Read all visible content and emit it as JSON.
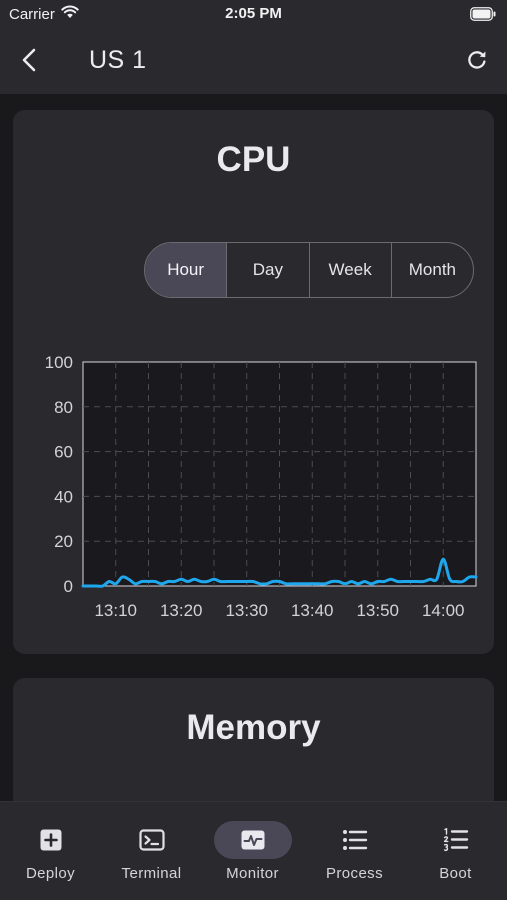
{
  "status_bar": {
    "carrier": "Carrier",
    "time": "2:05 PM",
    "wifi_icon": "wifi-icon",
    "battery_icon": "battery-icon"
  },
  "nav": {
    "title": "US 1",
    "back_icon": "chevron-left-icon",
    "refresh_icon": "refresh-icon"
  },
  "cpu_card": {
    "title": "CPU",
    "ranges": [
      "Hour",
      "Day",
      "Week",
      "Month"
    ],
    "selected_range": "Hour"
  },
  "memory_card": {
    "title": "Memory"
  },
  "tabs": [
    {
      "label": "Deploy",
      "icon": "plus-square-icon",
      "active": false
    },
    {
      "label": "Terminal",
      "icon": "terminal-icon",
      "active": false
    },
    {
      "label": "Monitor",
      "icon": "pulse-icon",
      "active": true
    },
    {
      "label": "Process",
      "icon": "list-icon",
      "active": false
    },
    {
      "label": "Boot",
      "icon": "numbered-list-icon",
      "active": false
    }
  ],
  "colors": {
    "background": "#19191c",
    "card": "#2a292e",
    "accent": "#4a4857",
    "series_line": "#1ea7ec"
  },
  "chart_data": {
    "type": "line",
    "title": "",
    "xlabel": "",
    "ylabel": "",
    "ylim": [
      0,
      100
    ],
    "yticks": [
      0,
      20,
      40,
      60,
      80,
      100
    ],
    "xticks": [
      "13:10",
      "13:20",
      "13:30",
      "13:40",
      "13:50",
      "14:00"
    ],
    "grid": true,
    "series": [
      {
        "x": [
          "13:05",
          "13:06",
          "13:07",
          "13:08",
          "13:09",
          "13:10",
          "13:11",
          "13:12",
          "13:13",
          "13:14",
          "13:15",
          "13:16",
          "13:17",
          "13:18",
          "13:19",
          "13:20",
          "13:21",
          "13:22",
          "13:23",
          "13:24",
          "13:25",
          "13:26",
          "13:27",
          "13:28",
          "13:29",
          "13:30",
          "13:31",
          "13:32",
          "13:33",
          "13:34",
          "13:35",
          "13:36",
          "13:37",
          "13:38",
          "13:39",
          "13:40",
          "13:41",
          "13:42",
          "13:43",
          "13:44",
          "13:45",
          "13:46",
          "13:47",
          "13:48",
          "13:49",
          "13:50",
          "13:51",
          "13:52",
          "13:53",
          "13:54",
          "13:55",
          "13:56",
          "13:57",
          "13:58",
          "13:59",
          "14:00",
          "14:01",
          "14:02",
          "14:03",
          "14:04",
          "14:05"
        ],
        "values": [
          0,
          0,
          0,
          0,
          2,
          1,
          4,
          3,
          1,
          2,
          2,
          2,
          1,
          2,
          2,
          3,
          2,
          3,
          2,
          2,
          3,
          2,
          2,
          2,
          2,
          2,
          2,
          1,
          1,
          2,
          2,
          1,
          1,
          1,
          1,
          1,
          1,
          1,
          2,
          2,
          1,
          2,
          1,
          2,
          1,
          2,
          2,
          3,
          2,
          2,
          2,
          2,
          2,
          3,
          3,
          12,
          3,
          2,
          2,
          4,
          4
        ]
      }
    ]
  }
}
